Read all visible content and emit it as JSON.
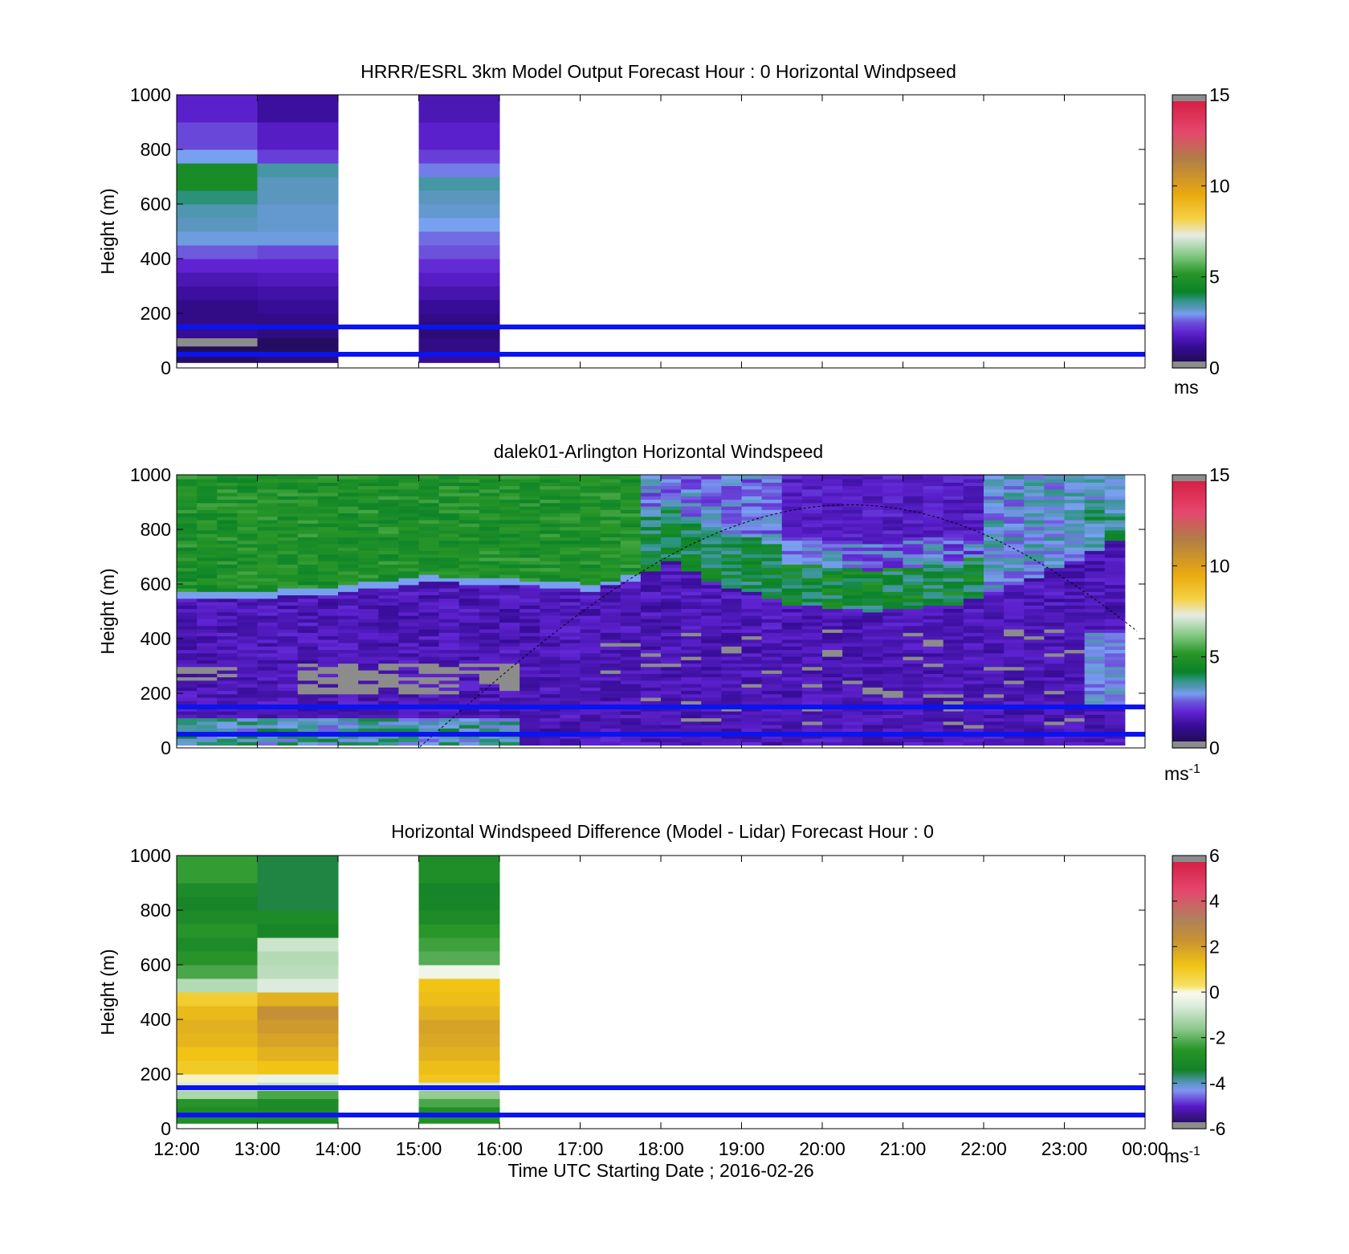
{
  "figure": {
    "xlabel": "Time UTC  Starting Date ; 2016-02-26",
    "xticks": [
      "12:00",
      "13:00",
      "14:00",
      "15:00",
      "16:00",
      "17:00",
      "18:00",
      "19:00",
      "20:00",
      "21:00",
      "22:00",
      "23:00",
      "00:00"
    ]
  },
  "chart_data": [
    {
      "type": "heatmap",
      "title": "HRRR/ESRL 3km Model Output   Forecast Hour : 0 Horizontal Windpseed",
      "ylabel": "Height (m)",
      "ylim": [
        0,
        1000
      ],
      "yticks": [
        "0",
        "200",
        "400",
        "600",
        "800",
        "1000"
      ],
      "colorbar": {
        "range": [
          0,
          15
        ],
        "ticks": [
          "0",
          "5",
          "10",
          "15"
        ],
        "unit": "ms",
        "unit_sup": "",
        "palette": "speed"
      },
      "reference_lines_m": [
        50,
        150
      ],
      "x_hours": [
        12,
        13,
        15
      ],
      "height_bins_m": [
        20,
        50,
        80,
        110,
        140,
        170,
        200,
        250,
        300,
        350,
        400,
        450,
        500,
        550,
        600,
        650,
        700,
        750,
        800,
        850,
        900,
        950,
        1000
      ],
      "columns": [
        {
          "hour": 12,
          "values": [
            1.0,
            0.6,
            0.4,
            -1,
            1.2,
            1.0,
            1.0,
            1.0,
            1.3,
            1.6,
            2.0,
            2.6,
            3.1,
            3.3,
            3.4,
            3.8,
            4.7,
            4.7,
            3.0,
            2.4,
            2.4,
            1.9,
            1.9
          ]
        },
        {
          "hour": 13,
          "values": [
            1.0,
            0.8,
            0.5,
            0.5,
            0.9,
            0.9,
            1.0,
            1.2,
            1.4,
            1.7,
            2.0,
            2.4,
            3.1,
            3.2,
            3.2,
            3.3,
            3.3,
            3.5,
            2.3,
            1.8,
            1.8,
            1.3,
            1.3
          ]
        },
        {
          "hour": 15,
          "values": [
            1.4,
            1.2,
            1.0,
            1.0,
            0.8,
            0.8,
            1.0,
            1.2,
            1.5,
            1.8,
            2.1,
            2.5,
            2.7,
            3.0,
            3.2,
            3.3,
            3.5,
            2.8,
            2.3,
            1.9,
            1.9,
            1.6,
            1.6
          ]
        }
      ]
    },
    {
      "type": "heatmap",
      "title": "dalek01-Arlington  Horizontal Windspeed",
      "ylabel": "Height (m)",
      "ylim": [
        0,
        1000
      ],
      "yticks": [
        "0",
        "200",
        "400",
        "600",
        "800",
        "1000"
      ],
      "colorbar": {
        "range": [
          0,
          15
        ],
        "ticks": [
          "0",
          "5",
          "10",
          "15"
        ],
        "unit": "ms",
        "unit_sup": "-1",
        "palette": "speed"
      },
      "reference_lines_m": [
        50,
        150
      ],
      "time_range_h": [
        12.0,
        23.75
      ],
      "bin_minutes": 15,
      "boundary_layer_top_m": [
        [
          12.0,
          540
        ],
        [
          13.5,
          550
        ],
        [
          15.0,
          600
        ],
        [
          16.0,
          590
        ],
        [
          17.0,
          570
        ],
        [
          17.5,
          600
        ],
        [
          18.0,
          680
        ],
        [
          18.5,
          600
        ],
        [
          19.5,
          520
        ],
        [
          20.5,
          490
        ],
        [
          21.5,
          520
        ],
        [
          22.5,
          620
        ],
        [
          23.75,
          780
        ]
      ],
      "low_level_features": "Gray no-data cells between 50 and 320 m from 13:30 to 16:00 and scattered after 17:00; light-blue/green near-surface band at 12:00-16:00; lighter blue winds below 400 m after 23:00",
      "curve": {
        "style": "dashed",
        "note": "arc rising from 0 m at about 15:00 to 890 m near 20:20 and falling to 440 m at 00:00"
      }
    },
    {
      "type": "heatmap",
      "title": "Horizontal Windspeed Difference (Model - Lidar) Forecast Hour : 0",
      "ylabel": "Height (m)",
      "ylim": [
        0,
        1000
      ],
      "yticks": [
        "0",
        "200",
        "400",
        "600",
        "800",
        "1000"
      ],
      "colorbar": {
        "range": [
          -6,
          6
        ],
        "ticks": [
          "-6",
          "-4",
          "-2",
          "0",
          "2",
          "4",
          "6"
        ],
        "unit": "ms",
        "unit_sup": "-1",
        "palette": "diff"
      },
      "reference_lines_m": [
        50,
        150
      ],
      "x_hours": [
        12,
        13,
        15
      ],
      "height_bins_m": [
        20,
        50,
        80,
        110,
        140,
        170,
        200,
        250,
        300,
        350,
        400,
        450,
        500,
        550,
        600,
        650,
        700,
        750,
        800,
        850,
        900,
        950,
        1000
      ],
      "columns": [
        {
          "hour": 12,
          "values": [
            -2.6,
            -2.9,
            -2.9,
            -2.6,
            -1.2,
            -0.6,
            0.1,
            1.0,
            1.2,
            1.5,
            1.6,
            1.4,
            0.9,
            -1.1,
            -2.2,
            -2.6,
            -3.0,
            -2.6,
            -3.0,
            -3.2,
            -3.0,
            -2.4,
            -2.4
          ]
        },
        {
          "hour": 13,
          "values": [
            -2.6,
            -3.0,
            -3.0,
            -3.0,
            -2.2,
            -0.9,
            -0.3,
            1.2,
            1.6,
            1.9,
            2.1,
            2.4,
            1.6,
            -0.6,
            -1.0,
            -1.1,
            -0.8,
            -3.2,
            -3.0,
            -3.5,
            -3.5,
            -3.5,
            -3.5
          ]
        },
        {
          "hour": 15,
          "values": [
            1.0,
            -2.8,
            -2.8,
            -2.2,
            -1.5,
            -0.7,
            1.1,
            1.3,
            1.6,
            1.8,
            1.9,
            1.6,
            1.3,
            1.2,
            -0.2,
            -2.1,
            -2.3,
            -2.5,
            -3.0,
            -3.2,
            -3.3,
            -2.9,
            -2.9
          ]
        }
      ]
    }
  ]
}
